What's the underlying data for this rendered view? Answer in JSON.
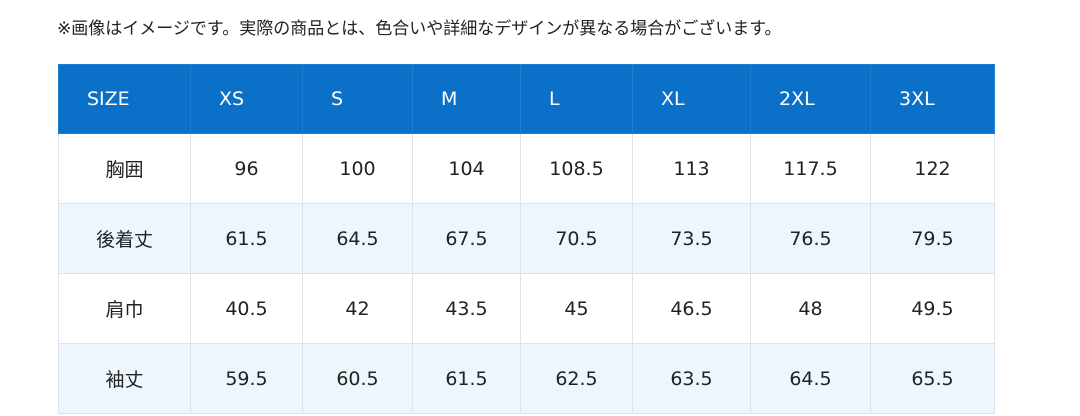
{
  "note": "※画像はイメージです。実際の商品とは、色合いや詳細なデザインが異なる場合がございます。",
  "table": {
    "header": [
      "SIZE",
      "XS",
      "S",
      "M",
      "L",
      "XL",
      "2XL",
      "3XL"
    ],
    "rows": [
      [
        "胸囲",
        96,
        100,
        104,
        108.5,
        113,
        117.5,
        122
      ],
      [
        "後着丈",
        61.5,
        64.5,
        67.5,
        70.5,
        73.5,
        76.5,
        79.5
      ],
      [
        "肩巾",
        40.5,
        42,
        43.5,
        45,
        46.5,
        48,
        49.5
      ],
      [
        "袖丈",
        59.5,
        60.5,
        61.5,
        62.5,
        63.5,
        64.5,
        65.5
      ]
    ]
  }
}
